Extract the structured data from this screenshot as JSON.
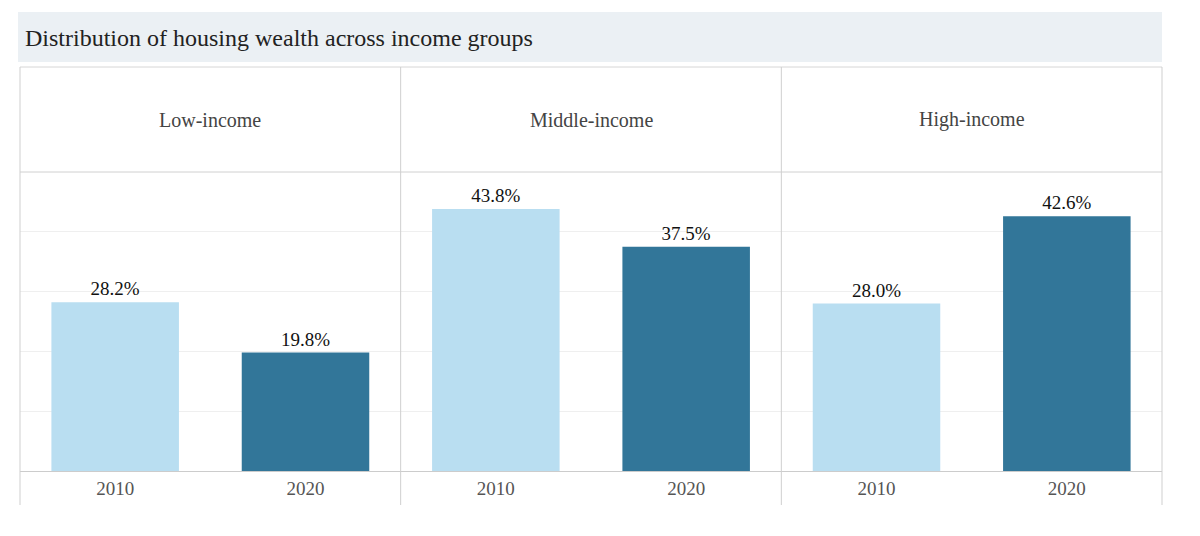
{
  "chart_data": {
    "type": "bar",
    "title": "Distribution of housing wealth across income groups",
    "ylim": [
      0,
      50
    ],
    "yticks": [
      0,
      10,
      20,
      30,
      40,
      50
    ],
    "grid": true,
    "data_labels": true,
    "tick_labels": "x",
    "panels": [
      {
        "title": "Low-income",
        "categories": [
          "2010",
          "2020"
        ],
        "values": [
          28.2,
          19.8
        ],
        "value_labels": [
          "28.2%",
          "19.8%"
        ],
        "colors": [
          "#b9def1",
          "#327699"
        ]
      },
      {
        "title": "Middle-income",
        "categories": [
          "2010",
          "2020"
        ],
        "values": [
          43.8,
          37.5
        ],
        "value_labels": [
          "43.8%",
          "37.5%"
        ],
        "colors": [
          "#b9def1",
          "#327699"
        ]
      },
      {
        "title": "High-income",
        "categories": [
          "2010",
          "2020"
        ],
        "values": [
          28.0,
          42.6
        ],
        "value_labels": [
          "28.0%",
          "42.6%"
        ],
        "colors": [
          "#b9def1",
          "#327699"
        ]
      }
    ]
  }
}
